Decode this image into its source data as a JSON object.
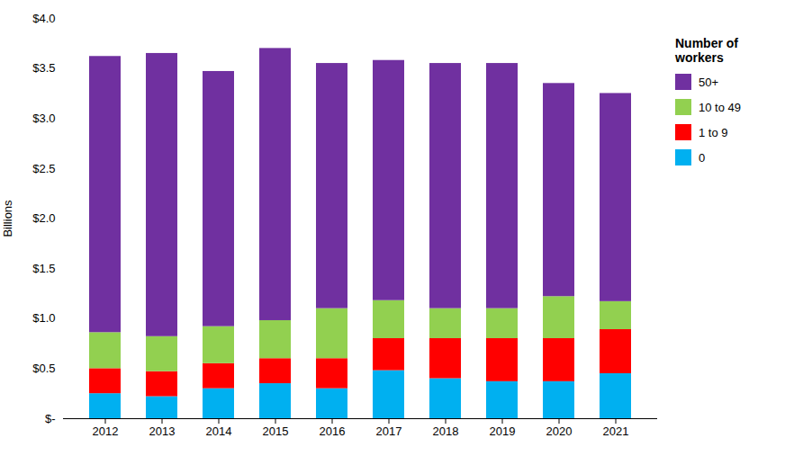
{
  "chart_data": {
    "type": "bar",
    "stacked": true,
    "categories": [
      "2012",
      "2013",
      "2014",
      "2015",
      "2016",
      "2017",
      "2018",
      "2019",
      "2020",
      "2021"
    ],
    "series": [
      {
        "name": "0",
        "color": "#00b0f0",
        "values": [
          0.25,
          0.22,
          0.3,
          0.35,
          0.3,
          0.48,
          0.4,
          0.37,
          0.37,
          0.45
        ]
      },
      {
        "name": "1 to 9",
        "color": "#ff0000",
        "values": [
          0.25,
          0.25,
          0.25,
          0.25,
          0.3,
          0.32,
          0.4,
          0.43,
          0.43,
          0.44
        ]
      },
      {
        "name": "10 to 49",
        "color": "#92d050",
        "values": [
          0.36,
          0.35,
          0.37,
          0.38,
          0.5,
          0.38,
          0.3,
          0.3,
          0.42,
          0.28
        ]
      },
      {
        "name": "50+",
        "color": "#7030a0",
        "values": [
          2.76,
          2.83,
          2.55,
          2.72,
          2.45,
          2.4,
          2.45,
          2.45,
          2.13,
          2.08
        ]
      }
    ],
    "ylabel": "Billions",
    "legend_title": "Number of\nworkers",
    "legend": "right",
    "ylim": [
      0,
      4.0
    ],
    "yticks": [
      {
        "value": 0,
        "label": "$-"
      },
      {
        "value": 0.5,
        "label": "$0.5"
      },
      {
        "value": 1.0,
        "label": "$1.0"
      },
      {
        "value": 1.5,
        "label": "$1.5"
      },
      {
        "value": 2.0,
        "label": "$2.0"
      },
      {
        "value": 2.5,
        "label": "$2.5"
      },
      {
        "value": 3.0,
        "label": "$3.0"
      },
      {
        "value": 3.5,
        "label": "$3.5"
      },
      {
        "value": 4.0,
        "label": "$4.0"
      }
    ],
    "grid": false
  }
}
